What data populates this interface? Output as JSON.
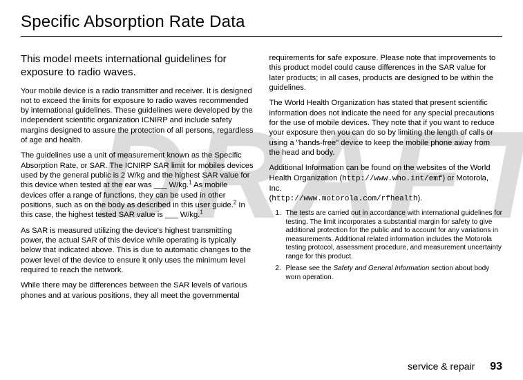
{
  "watermark": "DRAFT",
  "title": "Specific Absorption Rate Data",
  "subhead": "This model meets international guidelines for exposure to radio waves.",
  "col1": {
    "p1": "Your mobile device is a radio transmitter and receiver. It is designed not to exceed the limits for exposure to radio waves recommended by international guidelines. These guidelines were developed by the independent scientific organization ICNIRP and include safety margins designed to assure the protection of all persons, regardless of age and health.",
    "p2a": "The guidelines use a unit of measurement known as the Specific Absorption Rate, or SAR. The ICNIRP SAR limit for mobiles devices used by the general public is 2 W/kg and the highest SAR value for this device when tested at the ear was ___ W/kg.",
    "p2b": " As mobile devices offer a range of functions, they can be used in other positions, such as on the body as described in this user guide.",
    "p2c": " In this case, the highest tested SAR value is ___ W/kg.",
    "p3": "As SAR is measured utilizing the device's highest transmitting power, the actual SAR of this device while operating is typically below that indicated above. This is due to automatic changes to the power level of the device to ensure it only uses the minimum level required to reach the network.",
    "p4": "While there may be differences between the SAR levels of various phones and at various positions, they all meet the governmental"
  },
  "col2": {
    "p1": "requirements for safe exposure. Please note that improvements to this product model could cause differences in the SAR value for later products; in all cases, products are designed to be within the guidelines.",
    "p2": "The World Health Organization has stated that present scientific information does not indicate the need for any special precautions for the use of mobile devices. They note that if you want to reduce your exposure then you can do so by limiting the length of calls or using a \"hands-free\" device to keep the mobile phone away from the head and body.",
    "p3a": "Additional Information can be found on the websites of the World Health Organization (",
    "p3url1": "http://www.who.int/emf",
    "p3b": ") or Motorola, Inc.",
    "p3c": "(",
    "p3url2": "http://www.motorola.com/rfhealth",
    "p3d": ").",
    "fn1": "The tests are carried out in accordance with international guidelines for testing. The limit incorporates a substantial margin for safety to give additional protection for the public and to account for any variations in measurements. Additional related information includes the Motorola testing protocol, assessment procedure, and measurement uncertainty range for this product.",
    "fn2a": "Please see the ",
    "fn2italic": "Safety and General Information",
    "fn2b": " section about body worn operation."
  },
  "footer": {
    "section": "service & repair",
    "page": "93"
  }
}
